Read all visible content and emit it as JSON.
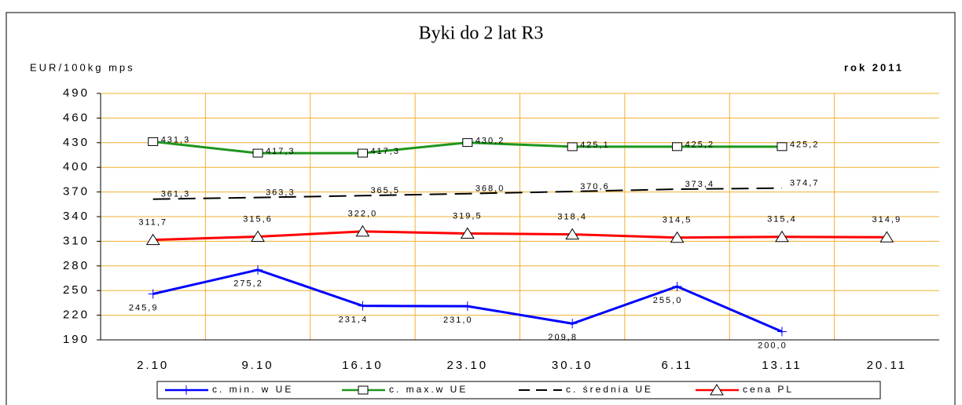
{
  "chart_data": {
    "type": "line",
    "title": "Byki do 2 lat R3",
    "y_label": "EUR/100kg mps",
    "annotation": "rok 2011",
    "categories": [
      "2.10",
      "9.10",
      "16.10",
      "23.10",
      "30.10",
      "6.11",
      "13.11",
      "20.11"
    ],
    "series": [
      {
        "name": "c. min. w UE",
        "color": "#0000ff",
        "marker": "plus",
        "label_pos": "below",
        "values": [
          245.9,
          275.2,
          231.4,
          231.0,
          209.8,
          255.0,
          200.0,
          null
        ],
        "value_labels": [
          "245,9",
          "275,2",
          "231,4",
          "231,0",
          "209,8",
          "255,0",
          "200,0",
          null
        ]
      },
      {
        "name": "c. max.w UE",
        "color": "#1e961e",
        "marker": "square",
        "label_pos": "right",
        "values": [
          431.3,
          417.3,
          417.3,
          430.2,
          425.1,
          425.2,
          425.2,
          null
        ],
        "value_labels": [
          "431,3",
          "417,3",
          "417,3",
          "430,2",
          "425,1",
          "425,2",
          "425,2",
          null
        ]
      },
      {
        "name": "c. średnia UE",
        "color": "#000000",
        "dashed": true,
        "label_pos": "aboveright",
        "values": [
          361.3,
          363.3,
          365.5,
          368.0,
          370.6,
          373.4,
          374.7,
          null
        ],
        "value_labels": [
          "361,3",
          "363,3",
          "365,5",
          "368,0",
          "370,6",
          "373,4",
          "374,7",
          null
        ]
      },
      {
        "name": "cena PL",
        "color": "#ff0000",
        "marker": "triangle",
        "label_pos": "above",
        "values": [
          311.7,
          315.6,
          322.0,
          319.5,
          318.4,
          314.5,
          315.4,
          314.9
        ],
        "value_labels": [
          "311,7",
          "315,6",
          "322,0",
          "319,5",
          "318,4",
          "314,5",
          "315,4",
          "314,9"
        ]
      }
    ],
    "ylim": [
      190,
      490
    ],
    "yticks": [
      190,
      220,
      250,
      280,
      310,
      340,
      370,
      400,
      430,
      460,
      490
    ],
    "grid": true,
    "grid_color": "#f0b030"
  }
}
